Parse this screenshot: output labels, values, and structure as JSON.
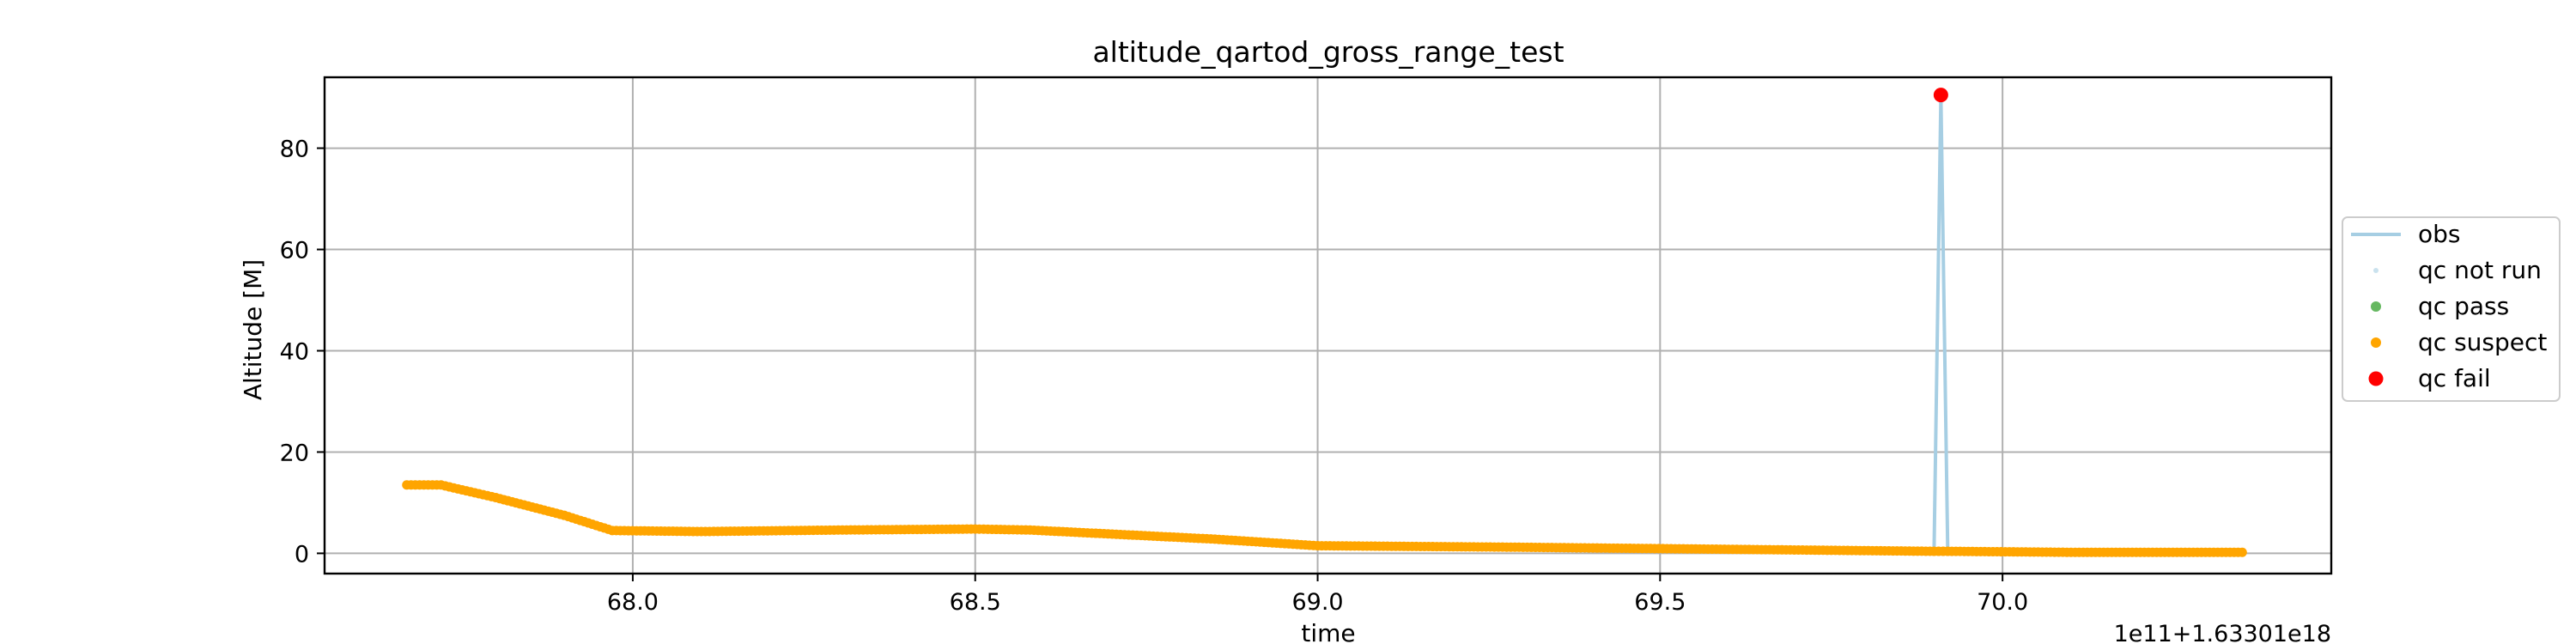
{
  "chart_data": {
    "type": "scatter",
    "title": "altitude_qartod_gross_range_test",
    "xlabel": "time",
    "ylabel": "Altitude [M]",
    "x_offset_label": "1e11+1.63301e18",
    "xlim": [
      67.55,
      70.48
    ],
    "ylim": [
      -4,
      94
    ],
    "grid": true,
    "legend_position": "right",
    "x_ticks": [
      {
        "value": 68.0,
        "label": "68.0"
      },
      {
        "value": 68.5,
        "label": "68.5"
      },
      {
        "value": 69.0,
        "label": "69.0"
      },
      {
        "value": 69.5,
        "label": "69.5"
      },
      {
        "value": 70.0,
        "label": "70.0"
      }
    ],
    "y_ticks": [
      {
        "value": 0,
        "label": "0"
      },
      {
        "value": 20,
        "label": "20"
      },
      {
        "value": 40,
        "label": "40"
      },
      {
        "value": 60,
        "label": "60"
      },
      {
        "value": 80,
        "label": "80"
      }
    ],
    "series": [
      {
        "name": "obs",
        "kind": "line",
        "color": "#a6cee3",
        "x": [
          67.67,
          67.72,
          67.8,
          67.9,
          67.97,
          68.1,
          68.3,
          68.5,
          68.58,
          68.7,
          68.85,
          69.0,
          69.3,
          69.6,
          69.9,
          69.91,
          69.915,
          69.92,
          70.1,
          70.35
        ],
        "y": [
          13.5,
          13.5,
          11.0,
          7.5,
          4.5,
          4.3,
          4.6,
          4.8,
          4.6,
          3.8,
          2.8,
          1.5,
          1.2,
          0.8,
          0.4,
          90.5,
          45.0,
          0.4,
          0.2,
          0.2
        ]
      },
      {
        "name": "qc not run",
        "kind": "points",
        "color": "#a6cee3",
        "x": [],
        "y": []
      },
      {
        "name": "qc pass",
        "kind": "points",
        "color": "#33a02c",
        "x": [],
        "y": []
      },
      {
        "name": "qc suspect",
        "kind": "points",
        "color": "#ffa500",
        "x": [
          67.67,
          67.72,
          67.8,
          67.9,
          67.97,
          68.1,
          68.3,
          68.5,
          68.58,
          68.7,
          68.85,
          69.0,
          69.3,
          69.6,
          69.9,
          69.92,
          70.1,
          70.35
        ],
        "y": [
          13.5,
          13.5,
          11.0,
          7.5,
          4.5,
          4.3,
          4.6,
          4.8,
          4.6,
          3.8,
          2.8,
          1.5,
          1.2,
          0.8,
          0.4,
          0.4,
          0.2,
          0.2
        ]
      },
      {
        "name": "qc fail",
        "kind": "points",
        "color": "#ff0000",
        "x": [
          69.91
        ],
        "y": [
          90.5
        ]
      }
    ]
  }
}
